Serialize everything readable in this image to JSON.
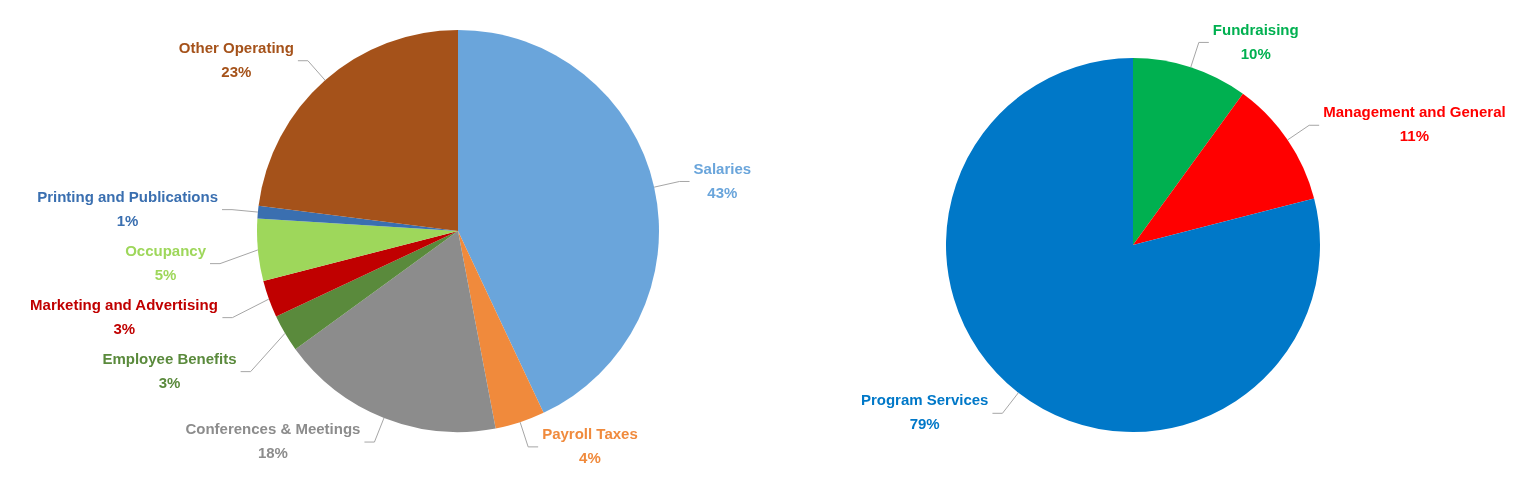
{
  "chart_data": [
    {
      "type": "pie",
      "categories": [
        "Salaries",
        "Payroll Taxes",
        "Conferences & Meetings",
        "Employee Benefits",
        "Marketing and Advertising",
        "Occupancy",
        "Printing and Publications",
        "Other Operating"
      ],
      "values": [
        43,
        4,
        18,
        3,
        3,
        5,
        1,
        23
      ],
      "colors": [
        "#6aa5db",
        "#f08a3c",
        "#8c8c8c",
        "#5a8a3c",
        "#c00000",
        "#9ed75b",
        "#3a6fb0",
        "#a5521a"
      ],
      "value_labels": [
        "43%",
        "4%",
        "18%",
        "3%",
        "3%",
        "5%",
        "1%",
        "23%"
      ]
    },
    {
      "type": "pie",
      "categories": [
        "Fundraising",
        "Management and General",
        "Program Services"
      ],
      "values": [
        10,
        11,
        79
      ],
      "colors": [
        "#00b050",
        "#ff0000",
        "#0078c8"
      ],
      "value_labels": [
        "10%",
        "11%",
        "79%"
      ]
    }
  ]
}
